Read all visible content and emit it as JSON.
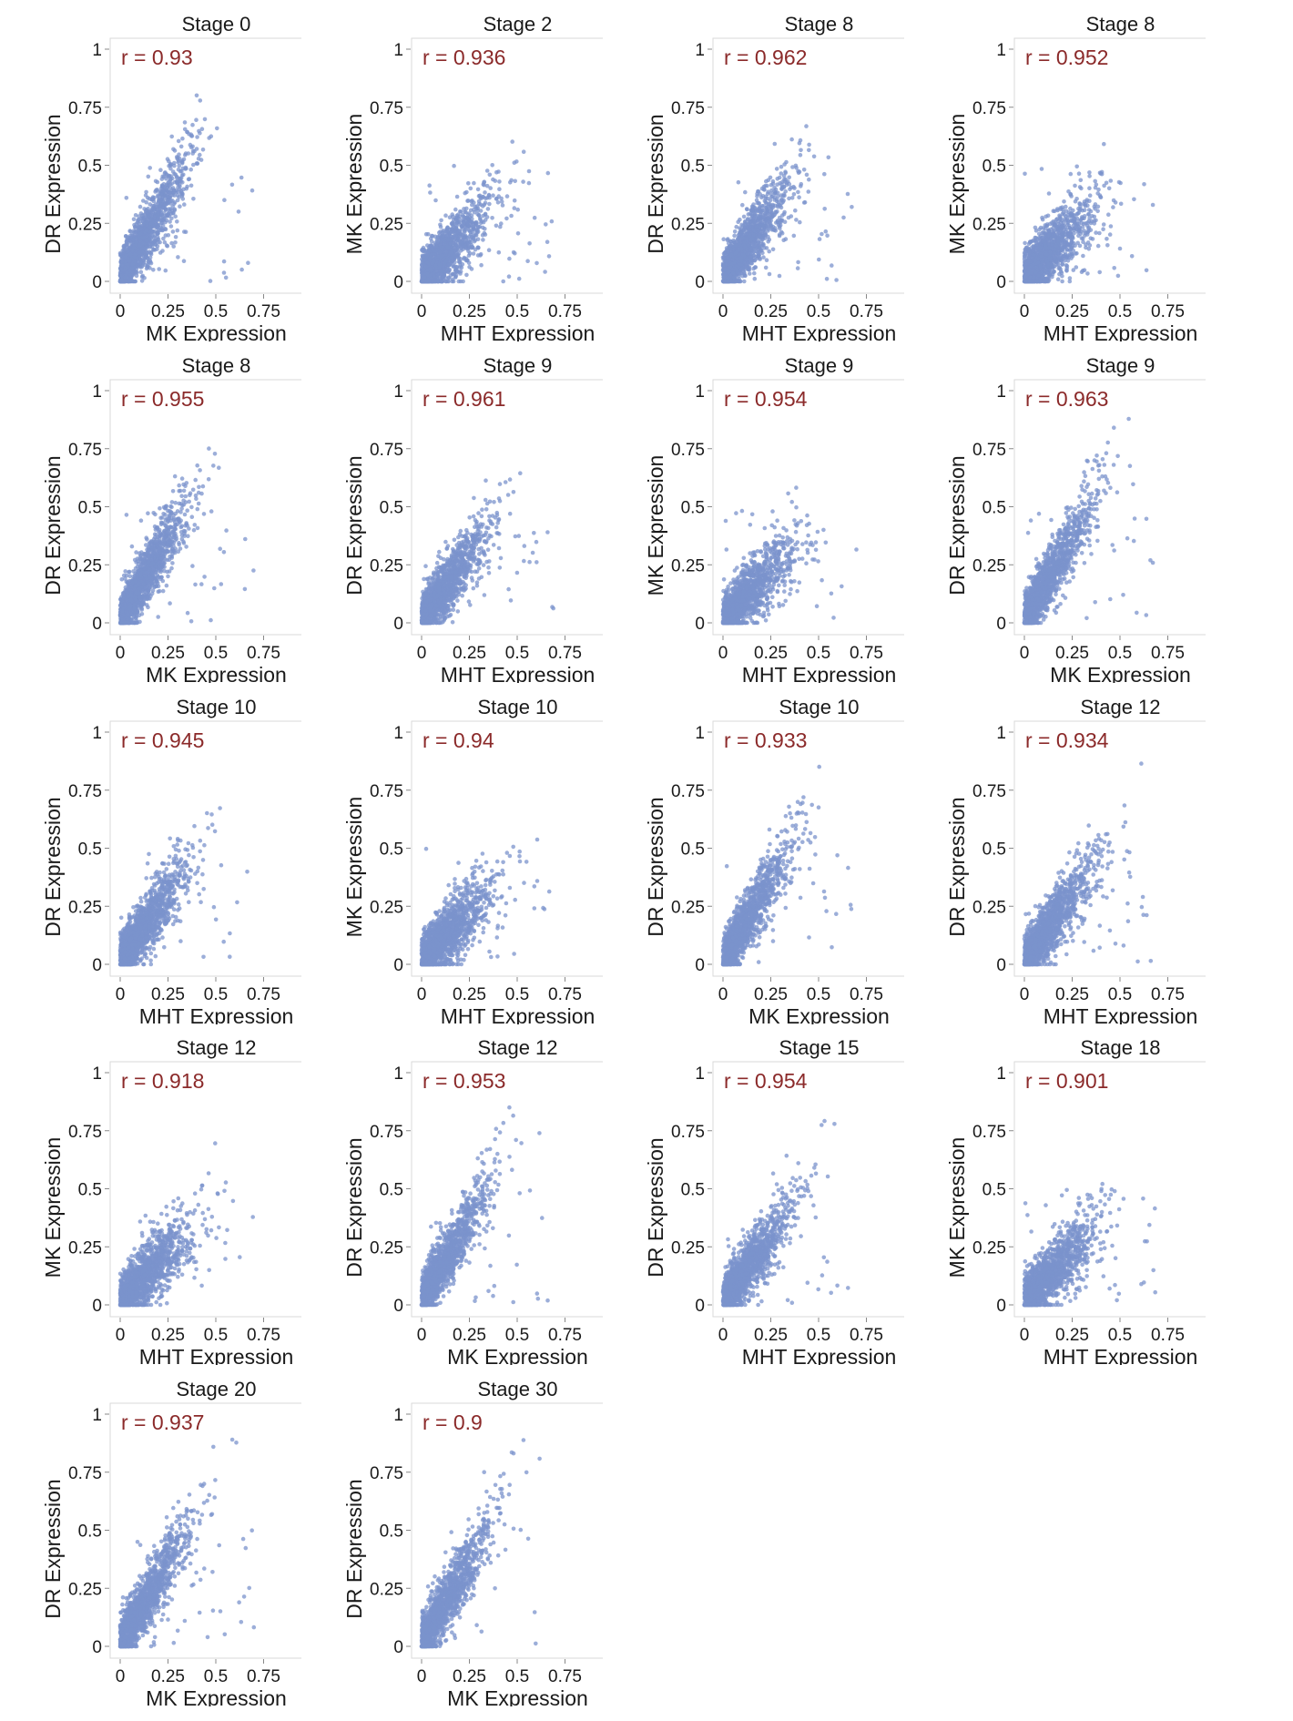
{
  "chart_data": [
    {
      "type": "scatter",
      "title": "Stage 0",
      "annotation": "r = 0.93",
      "xlabel": "MK Expression",
      "ylabel": "DR Expression"
    },
    {
      "type": "scatter",
      "title": "Stage 2",
      "annotation": "r = 0.936",
      "xlabel": "MHT Expression",
      "ylabel": "MK Expression"
    },
    {
      "type": "scatter",
      "title": "Stage 8",
      "annotation": "r = 0.962",
      "xlabel": "MHT Expression",
      "ylabel": "DR Expression"
    },
    {
      "type": "scatter",
      "title": "Stage 8",
      "annotation": "r = 0.952",
      "xlabel": "MHT Expression",
      "ylabel": "MK Expression"
    },
    {
      "type": "scatter",
      "title": "Stage 8",
      "annotation": "r = 0.955",
      "xlabel": "MK Expression",
      "ylabel": "DR Expression"
    },
    {
      "type": "scatter",
      "title": "Stage 9",
      "annotation": "r = 0.961",
      "xlabel": "MHT Expression",
      "ylabel": "DR Expression"
    },
    {
      "type": "scatter",
      "title": "Stage 9",
      "annotation": "r = 0.954",
      "xlabel": "MHT Expression",
      "ylabel": "MK Expression"
    },
    {
      "type": "scatter",
      "title": "Stage 9",
      "annotation": "r = 0.963",
      "xlabel": "MK Expression",
      "ylabel": "DR Expression"
    },
    {
      "type": "scatter",
      "title": "Stage 10",
      "annotation": "r = 0.945",
      "xlabel": "MHT Expression",
      "ylabel": "DR Expression"
    },
    {
      "type": "scatter",
      "title": "Stage 10",
      "annotation": "r = 0.94",
      "xlabel": "MHT Expression",
      "ylabel": "MK Expression"
    },
    {
      "type": "scatter",
      "title": "Stage 10",
      "annotation": "r = 0.933",
      "xlabel": "MK Expression",
      "ylabel": "DR Expression"
    },
    {
      "type": "scatter",
      "title": "Stage 12",
      "annotation": "r = 0.934",
      "xlabel": "MHT Expression",
      "ylabel": "DR Expression"
    },
    {
      "type": "scatter",
      "title": "Stage 12",
      "annotation": "r = 0.918",
      "xlabel": "MHT Expression",
      "ylabel": "MK Expression"
    },
    {
      "type": "scatter",
      "title": "Stage 12",
      "annotation": "r = 0.953",
      "xlabel": "MK Expression",
      "ylabel": "DR Expression"
    },
    {
      "type": "scatter",
      "title": "Stage 15",
      "annotation": "r = 0.954",
      "xlabel": "MHT Expression",
      "ylabel": "DR Expression"
    },
    {
      "type": "scatter",
      "title": "Stage 18",
      "annotation": "r = 0.901",
      "xlabel": "MHT Expression",
      "ylabel": "MK Expression"
    },
    {
      "type": "scatter",
      "title": "Stage 20",
      "annotation": "r = 0.937",
      "xlabel": "MK Expression",
      "ylabel": "DR Expression"
    },
    {
      "type": "scatter",
      "title": "Stage 30",
      "annotation": "r = 0.9",
      "xlabel": "MK Expression",
      "ylabel": "DR Expression"
    }
  ],
  "axes": {
    "xlim": [
      0,
      1
    ],
    "ylim": [
      0,
      1
    ],
    "xticks": [
      "0",
      "0.25",
      "0.5",
      "0.75",
      "1"
    ],
    "yticks": [
      "0",
      "0.25",
      "0.5",
      "0.75",
      "1"
    ],
    "grid": false
  },
  "colors": {
    "points": "#7b93cc",
    "annotation": "#8b2a2a",
    "frame": "#d9d9d9",
    "text": "#1a1a1a"
  }
}
